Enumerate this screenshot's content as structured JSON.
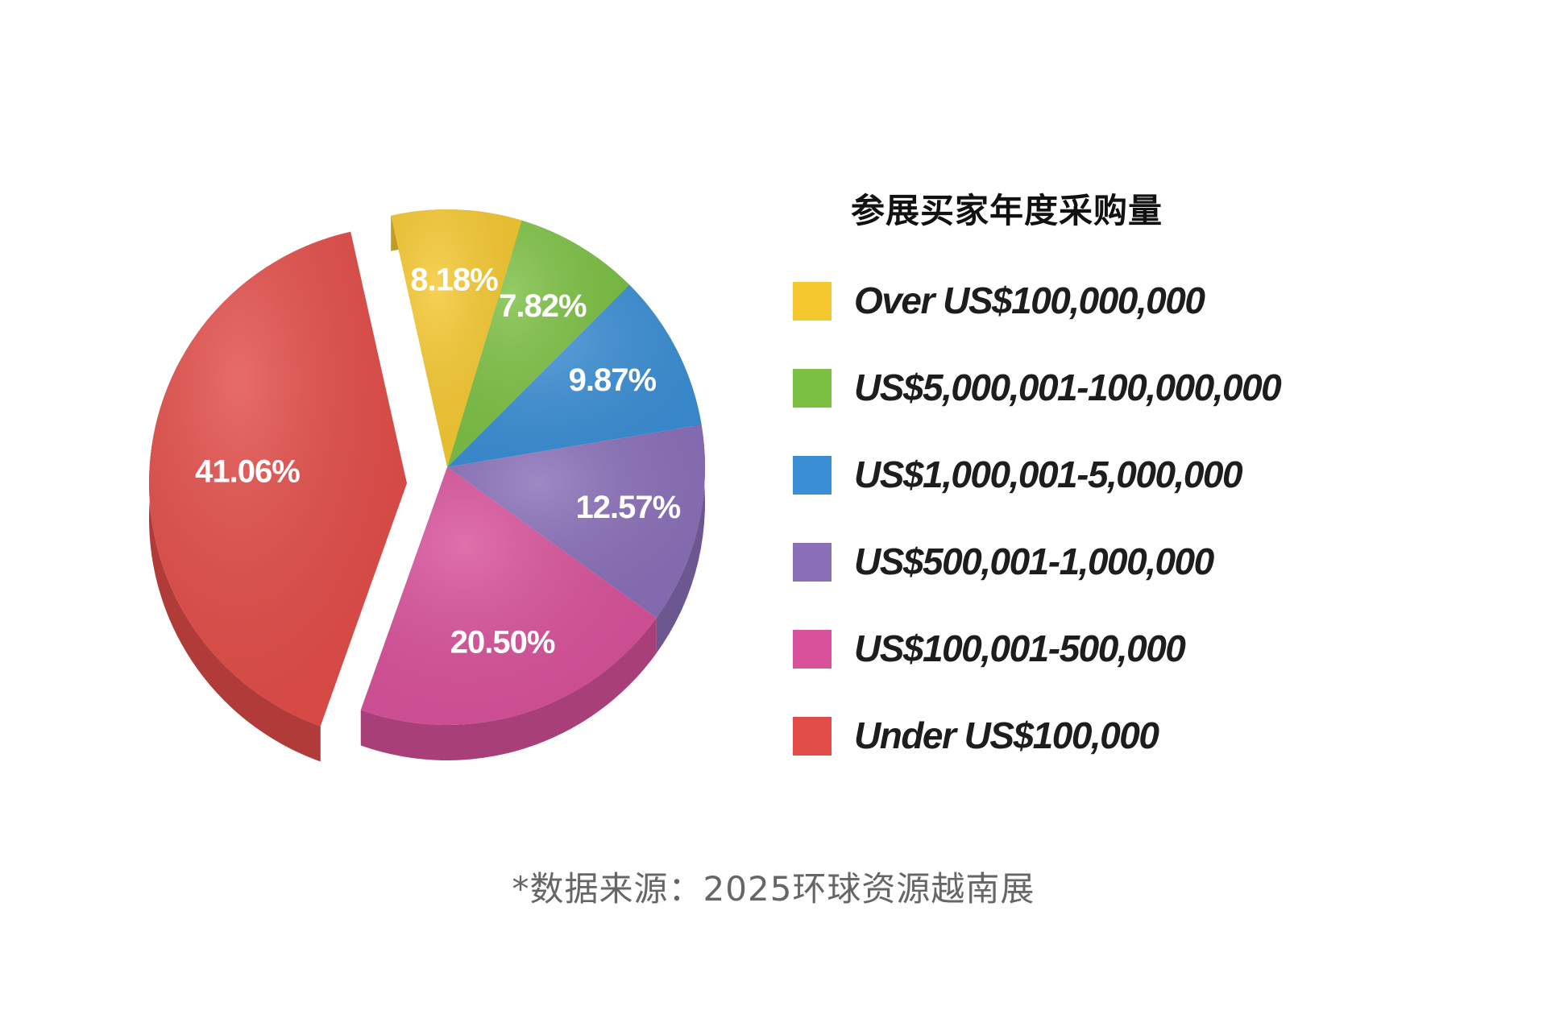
{
  "chart_data": {
    "type": "pie",
    "title": "参展买家年度采购量",
    "categories": [
      "Over US$100,000,000",
      "US$5,000,001-100,000,000",
      "US$1,000,001-5,000,000",
      "US$500,001-1,000,000",
      "US$100,001-500,000",
      "Under US$100,000"
    ],
    "values": [
      8.18,
      7.82,
      9.87,
      12.57,
      20.5,
      41.06
    ],
    "data_labels": [
      "8.18%",
      "7.82%",
      "9.87%",
      "12.57%",
      "20.50%",
      "41.06%"
    ],
    "colors": [
      "#f5c830",
      "#7cc043",
      "#3a8ed4",
      "#8a6fb8",
      "#d8519a",
      "#e24c48"
    ],
    "legend_position": "right",
    "style": "3d-exploded"
  },
  "footnote": "*数据来源：2025环球资源越南展"
}
